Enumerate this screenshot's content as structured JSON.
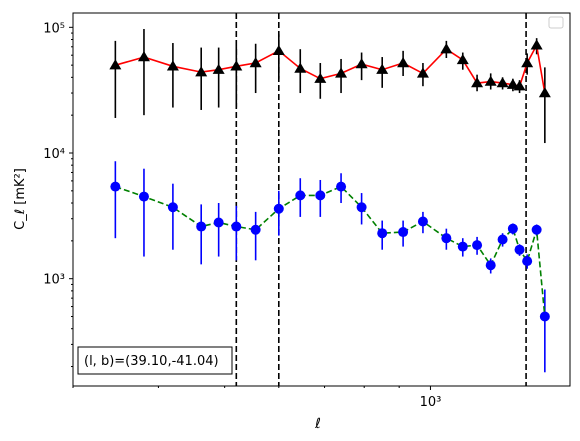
{
  "chart_data": {
    "type": "scatter",
    "xscale": "log",
    "yscale": "log",
    "xlim": [
      300,
      1600
    ],
    "ylim": [
      140,
      130000
    ],
    "xlabel": "ℓ",
    "ylabel": "C_ℓ  [mK²]",
    "x_ticks": [
      {
        "value": 1000,
        "label": "10³"
      }
    ],
    "y_ticks": [
      {
        "value": 1000,
        "label": "10³"
      },
      {
        "value": 10000,
        "label": "10⁴"
      },
      {
        "value": 100000,
        "label": "10⁵"
      }
    ],
    "legend": {
      "placement": "top-right",
      "entries": []
    },
    "annotation": "(l, b)=(39.10,-41.04)",
    "vlines": [
      520,
      600,
      1380
    ],
    "colors": {
      "upper_line": "#ff0000",
      "upper_marker": "#000000",
      "lower_line": "#008000",
      "lower_marker": "#0000ff",
      "vline": "#000000"
    },
    "series": [
      {
        "marker": "triangle",
        "line_style": "solid",
        "points": [
          {
            "x": 346,
            "y": 50000,
            "lo": 19000,
            "hi": 78000
          },
          {
            "x": 381,
            "y": 58000,
            "lo": 20000,
            "hi": 97000
          },
          {
            "x": 420,
            "y": 49000,
            "lo": 23000,
            "hi": 75000
          },
          {
            "x": 462,
            "y": 44000,
            "lo": 22000,
            "hi": 69000
          },
          {
            "x": 490,
            "y": 46000,
            "lo": 23000,
            "hi": 69000
          },
          {
            "x": 520,
            "y": 49000,
            "lo": 23000,
            "hi": 71000
          },
          {
            "x": 555,
            "y": 52000,
            "lo": 30000,
            "hi": 74000
          },
          {
            "x": 600,
            "y": 65000,
            "lo": 39000,
            "hi": 88000
          },
          {
            "x": 645,
            "y": 47000,
            "lo": 30000,
            "hi": 67000
          },
          {
            "x": 690,
            "y": 39000,
            "lo": 27000,
            "hi": 52000
          },
          {
            "x": 740,
            "y": 43000,
            "lo": 30000,
            "hi": 56000
          },
          {
            "x": 793,
            "y": 51000,
            "lo": 38000,
            "hi": 63000
          },
          {
            "x": 850,
            "y": 46000,
            "lo": 33000,
            "hi": 58000
          },
          {
            "x": 912,
            "y": 52000,
            "lo": 41000,
            "hi": 65000
          },
          {
            "x": 975,
            "y": 43000,
            "lo": 34000,
            "hi": 52000
          },
          {
            "x": 1055,
            "y": 67000,
            "lo": 57000,
            "hi": 78000
          },
          {
            "x": 1115,
            "y": 55000,
            "lo": 46000,
            "hi": 63000
          },
          {
            "x": 1170,
            "y": 36000,
            "lo": 31000,
            "hi": 42000
          },
          {
            "x": 1225,
            "y": 37000,
            "lo": 32000,
            "hi": 43000
          },
          {
            "x": 1275,
            "y": 36000,
            "lo": 32000,
            "hi": 40000
          },
          {
            "x": 1320,
            "y": 35000,
            "lo": 31000,
            "hi": 39000
          },
          {
            "x": 1350,
            "y": 34000,
            "lo": 30000,
            "hi": 38000
          },
          {
            "x": 1385,
            "y": 52000,
            "lo": 42000,
            "hi": 62000
          },
          {
            "x": 1430,
            "y": 72000,
            "lo": 61000,
            "hi": 82000
          },
          {
            "x": 1470,
            "y": 30000,
            "lo": 12000,
            "hi": 48000
          }
        ]
      },
      {
        "marker": "circle",
        "line_style": "dashed",
        "points": [
          {
            "x": 346,
            "y": 5400,
            "lo": 2100,
            "hi": 8600
          },
          {
            "x": 381,
            "y": 4500,
            "lo": 1500,
            "hi": 7500
          },
          {
            "x": 420,
            "y": 3700,
            "lo": 1700,
            "hi": 5700
          },
          {
            "x": 462,
            "y": 2600,
            "lo": 1300,
            "hi": 3900
          },
          {
            "x": 490,
            "y": 2800,
            "lo": 1500,
            "hi": 4000
          },
          {
            "x": 520,
            "y": 2600,
            "lo": 1400,
            "hi": 3800
          },
          {
            "x": 555,
            "y": 2450,
            "lo": 1400,
            "hi": 3400
          },
          {
            "x": 600,
            "y": 3600,
            "lo": 2200,
            "hi": 5000
          },
          {
            "x": 645,
            "y": 4600,
            "lo": 3100,
            "hi": 6300
          },
          {
            "x": 690,
            "y": 4600,
            "lo": 3100,
            "hi": 6100
          },
          {
            "x": 740,
            "y": 5400,
            "lo": 4000,
            "hi": 6900
          },
          {
            "x": 793,
            "y": 3700,
            "lo": 2700,
            "hi": 4800
          },
          {
            "x": 850,
            "y": 2300,
            "lo": 1700,
            "hi": 2900
          },
          {
            "x": 912,
            "y": 2350,
            "lo": 1800,
            "hi": 2900
          },
          {
            "x": 975,
            "y": 2850,
            "lo": 2300,
            "hi": 3400
          },
          {
            "x": 1055,
            "y": 2100,
            "lo": 1700,
            "hi": 2500
          },
          {
            "x": 1115,
            "y": 1800,
            "lo": 1500,
            "hi": 2100
          },
          {
            "x": 1170,
            "y": 1850,
            "lo": 1550,
            "hi": 2150
          },
          {
            "x": 1225,
            "y": 1280,
            "lo": 1100,
            "hi": 1450
          },
          {
            "x": 1275,
            "y": 2050,
            "lo": 1800,
            "hi": 2300
          },
          {
            "x": 1320,
            "y": 2500,
            "lo": 2250,
            "hi": 2750
          },
          {
            "x": 1350,
            "y": 1700,
            "lo": 1520,
            "hi": 1880
          },
          {
            "x": 1385,
            "y": 1380,
            "lo": 1200,
            "hi": 1560
          },
          {
            "x": 1430,
            "y": 2450,
            "lo": 2200,
            "hi": 2700
          },
          {
            "x": 1470,
            "y": 500,
            "lo": 180,
            "hi": 820
          }
        ]
      }
    ]
  }
}
